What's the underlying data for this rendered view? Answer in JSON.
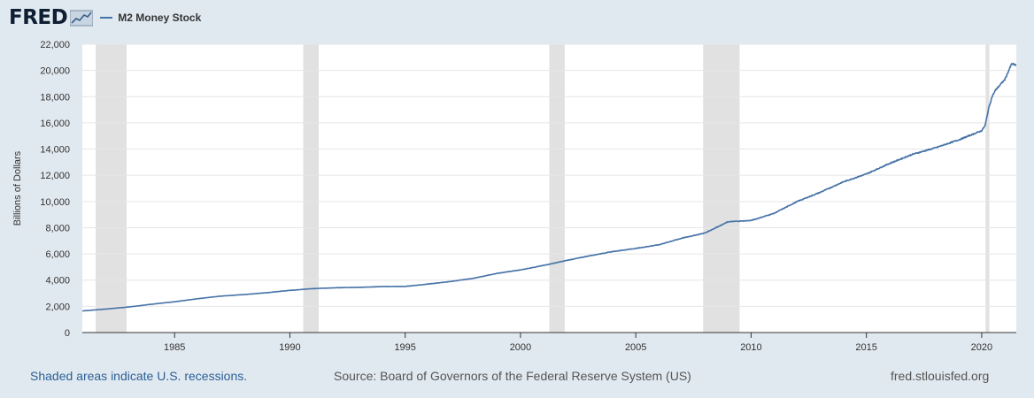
{
  "header": {
    "logo_text": "FRED",
    "logo_icon": "trend-line-icon",
    "legend_label": "M2 Money Stock",
    "legend_color": "#4572a7"
  },
  "footer": {
    "recession_note": "Shaded areas indicate U.S. recessions.",
    "source": "Source: Board of Governors of the Federal Reserve System (US)",
    "site": "fred.stlouisfed.org"
  },
  "chart_data": {
    "type": "line",
    "title": "",
    "xlabel": "",
    "ylabel": "Billions of Dollars",
    "xlim": [
      1981.0,
      2021.5
    ],
    "ylim": [
      0,
      22000
    ],
    "y_ticks": [
      0,
      2000,
      4000,
      6000,
      8000,
      10000,
      12000,
      14000,
      16000,
      18000,
      20000,
      22000
    ],
    "y_tick_labels": [
      "0",
      "2,000",
      "4,000",
      "6,000",
      "8,000",
      "10,000",
      "12,000",
      "14,000",
      "16,000",
      "18,000",
      "20,000",
      "22,000"
    ],
    "x_ticks": [
      1985,
      1990,
      1995,
      2000,
      2005,
      2010,
      2015,
      2020
    ],
    "x_tick_labels": [
      "1985",
      "1990",
      "1995",
      "2000",
      "2005",
      "2010",
      "2015",
      "2020"
    ],
    "grid": "horizontal",
    "recessions": [
      [
        1981.58,
        1982.92
      ],
      [
        1990.58,
        1991.25
      ],
      [
        2001.25,
        2001.92
      ],
      [
        2007.92,
        2009.5
      ],
      [
        2020.17,
        2020.33
      ]
    ],
    "recession_color": "#e1e1e1",
    "series": [
      {
        "name": "M2 Money Stock",
        "color": "#4572a7",
        "x": [
          1981.0,
          1982.0,
          1983.0,
          1984.0,
          1985.0,
          1986.0,
          1987.0,
          1988.0,
          1989.0,
          1990.0,
          1991.0,
          1992.0,
          1993.0,
          1994.0,
          1995.0,
          1996.0,
          1997.0,
          1998.0,
          1999.0,
          2000.0,
          2001.0,
          2002.0,
          2003.0,
          2004.0,
          2005.0,
          2006.0,
          2007.0,
          2008.0,
          2009.0,
          2010.0,
          2011.0,
          2012.0,
          2013.0,
          2014.0,
          2015.0,
          2016.0,
          2017.0,
          2018.0,
          2019.0,
          2020.0,
          2020.15,
          2020.3,
          2020.45,
          2020.6,
          2021.0,
          2021.3,
          2021.5
        ],
        "y": [
          1650,
          1790,
          1950,
          2160,
          2350,
          2580,
          2780,
          2900,
          3040,
          3220,
          3350,
          3420,
          3450,
          3510,
          3520,
          3700,
          3900,
          4150,
          4520,
          4780,
          5120,
          5500,
          5860,
          6180,
          6420,
          6700,
          7200,
          7600,
          8450,
          8550,
          9100,
          10000,
          10700,
          11500,
          12100,
          12900,
          13600,
          14100,
          14700,
          15400,
          15800,
          17100,
          18000,
          18500,
          19300,
          20500,
          20400
        ]
      }
    ]
  }
}
